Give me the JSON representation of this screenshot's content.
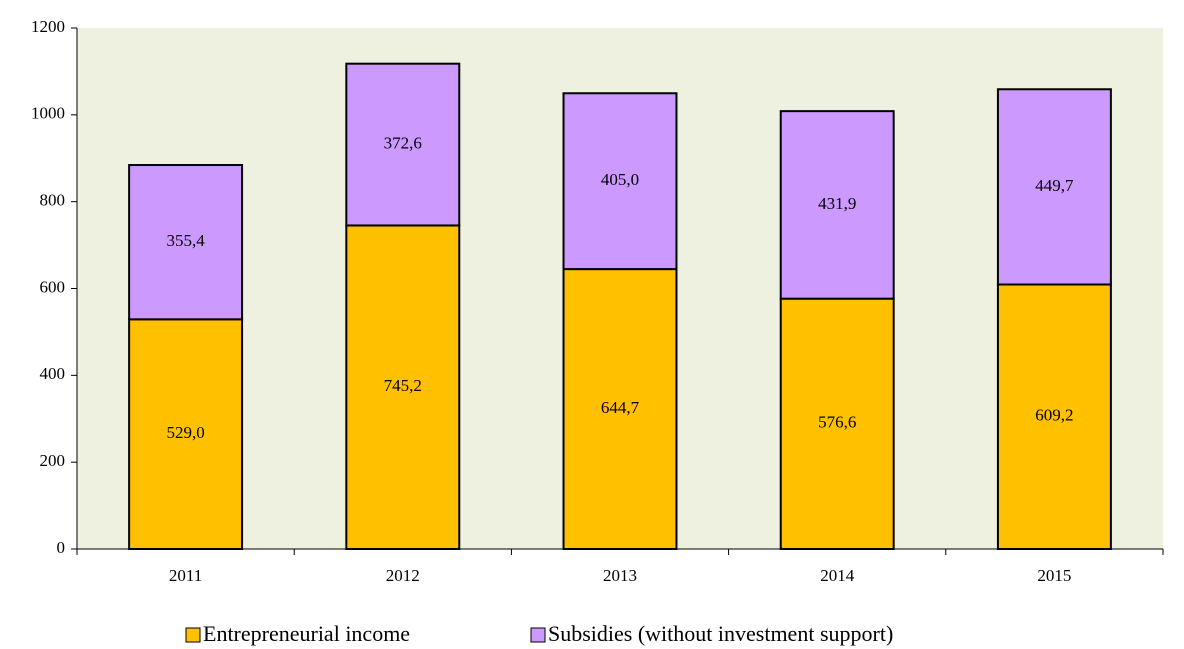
{
  "chart_data": {
    "type": "stacked_bar",
    "categories": [
      "2011",
      "2012",
      "2013",
      "2014",
      "2015"
    ],
    "series": [
      {
        "name": "Entrepreneurial income",
        "color": "#ffc000",
        "values": [
          529.0,
          745.2,
          644.7,
          576.6,
          609.2
        ],
        "value_labels": [
          "529,0",
          "745,2",
          "644,7",
          "576,6",
          "609,2"
        ]
      },
      {
        "name": "Subsidies (without investment support)",
        "color": "#cc99ff",
        "values": [
          355.4,
          372.6,
          405.0,
          431.9,
          449.7
        ],
        "value_labels": [
          "355,4",
          "372,6",
          "405,0",
          "431,9",
          "449,7"
        ]
      }
    ],
    "ylim": [
      0,
      1200
    ],
    "yticks": [
      0,
      200,
      400,
      600,
      800,
      1000,
      1200
    ],
    "plot_background": "#eef0e0",
    "legend": "bottom"
  }
}
